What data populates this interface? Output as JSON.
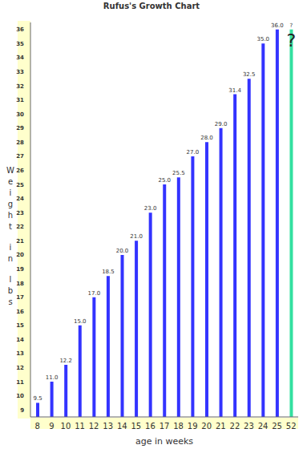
{
  "chart_data": {
    "type": "bar",
    "title": "Rufus's Growth Chart",
    "x_label": "age in weeks",
    "y_label": "Weight in lbs",
    "categories": [
      "8",
      "9",
      "10",
      "11",
      "12",
      "13",
      "14",
      "15",
      "16",
      "17",
      "18",
      "19",
      "20",
      "21",
      "22",
      "23",
      "24",
      "25",
      "52"
    ],
    "values": [
      9.5,
      11.0,
      12.2,
      15.0,
      17.0,
      18.5,
      20.0,
      21.0,
      23.0,
      25.0,
      25.5,
      27.0,
      28.0,
      29.0,
      31.4,
      32.5,
      35.0,
      36.0,
      36.0
    ],
    "value_labels": [
      "9.5",
      "11.0",
      "12.2",
      "15.0",
      "17.0",
      "18.5",
      "20.0",
      "21.0",
      "23.0",
      "25.0",
      "25.5",
      "27.0",
      "28.0",
      "29.0",
      "31.4",
      "32.5",
      "35.0",
      "36.0",
      "?"
    ],
    "colors": [
      "#3333ff",
      "#3333ff",
      "#3333ff",
      "#3333ff",
      "#3333ff",
      "#3333ff",
      "#3333ff",
      "#3333ff",
      "#3333ff",
      "#3333ff",
      "#3333ff",
      "#3333ff",
      "#3333ff",
      "#3333ff",
      "#3333ff",
      "#3333ff",
      "#3333ff",
      "#3333ff",
      "#33e0a0"
    ],
    "annotations": [
      {
        "text": "?",
        "category": "52"
      }
    ],
    "ylim": [
      8.5,
      36.5
    ],
    "yticks": [
      9,
      10,
      11,
      12,
      13,
      14,
      15,
      16,
      17,
      18,
      19,
      20,
      21,
      22,
      23,
      24,
      25,
      26,
      27,
      28,
      29,
      30,
      31,
      32,
      33,
      34,
      35,
      36
    ],
    "grid": false,
    "data_labels": true
  }
}
